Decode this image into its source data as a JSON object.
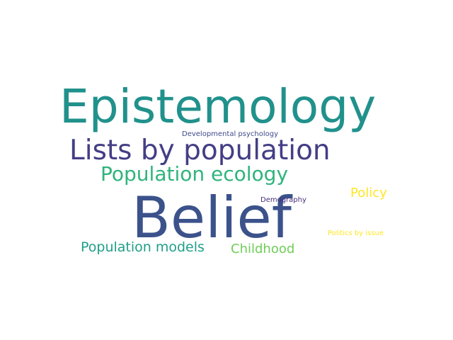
{
  "words": [
    {
      "text": "Epistemology",
      "color": "#21918c"
    },
    {
      "text": "Lists by population",
      "color": "#433e85"
    },
    {
      "text": "Population ecology",
      "color": "#2fb47c"
    },
    {
      "text": "Belief",
      "color": "#3b528b"
    },
    {
      "text": "Policy",
      "color": "#fde725"
    },
    {
      "text": "Population models",
      "color": "#1f9e89"
    },
    {
      "text": "Childhood",
      "color": "#6ece58"
    },
    {
      "text": "Developmental psychology",
      "color": "#3e4a89"
    },
    {
      "text": "Demography",
      "color": "#472d7b"
    },
    {
      "text": "Politics by issue",
      "color": "#fde725"
    }
  ]
}
